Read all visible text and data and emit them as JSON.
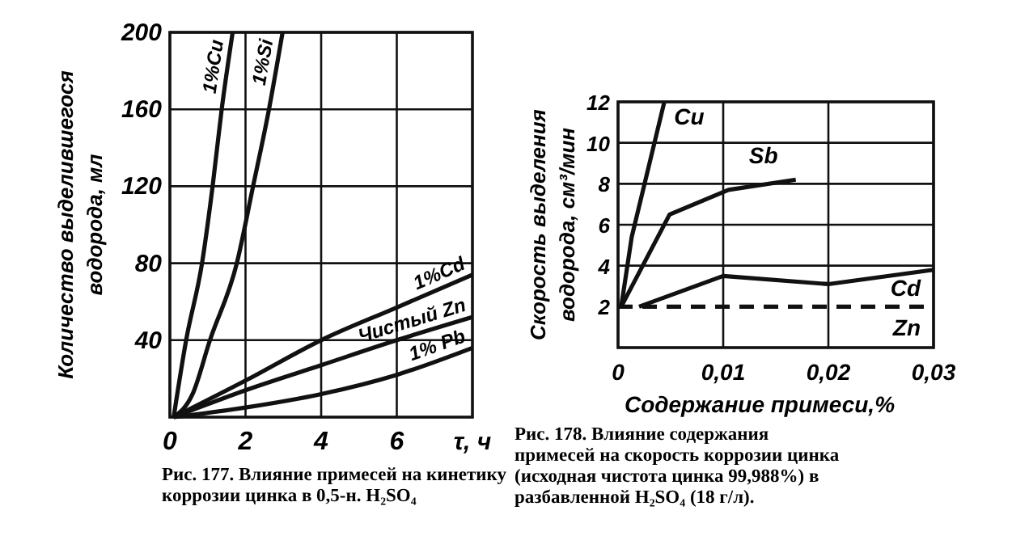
{
  "chart_data": [
    {
      "type": "line",
      "xlabel": "τ, ч",
      "ylabel": "Количество выделившегося водорода, мл",
      "xlim": [
        0,
        8
      ],
      "xticks": [
        0,
        2,
        4,
        6
      ],
      "ylim": [
        0,
        200
      ],
      "yticks": [
        40,
        80,
        120,
        160,
        200
      ],
      "grid": true,
      "series": [
        {
          "name": "1%Cu",
          "color": "#111111",
          "x": [
            0.1,
            0.43,
            0.85,
            1.13,
            1.37,
            1.66
          ],
          "values": [
            0,
            40,
            80,
            120,
            160,
            200
          ]
        },
        {
          "name": "1%Si",
          "color": "#111111",
          "x": [
            0.1,
            0.6,
            1.06,
            1.77,
            2.2,
            2.62,
            2.98
          ],
          "values": [
            0,
            12,
            40,
            80,
            120,
            160,
            200
          ]
        },
        {
          "name": "1%Cd",
          "color": "#111111",
          "x": [
            0.1,
            2,
            4,
            6,
            8
          ],
          "values": [
            0,
            19,
            40,
            57,
            74
          ]
        },
        {
          "name": "Чистый Zn",
          "color": "#111111",
          "x": [
            0.1,
            2,
            4,
            6,
            8
          ],
          "values": [
            0,
            14,
            27,
            40,
            52
          ]
        },
        {
          "name": "1% Pb",
          "color": "#111111",
          "x": [
            0.1,
            2,
            4,
            6,
            8
          ],
          "values": [
            0,
            5,
            12,
            22,
            36
          ]
        }
      ],
      "annotations": [
        "Рис. 177. Влияние примесей на кинетику коррозии цинка в 0,5-н. H₂SO₄"
      ]
    },
    {
      "type": "line",
      "xlabel": "Содержание примеси,%",
      "ylabel": "Скорость выделения водорода, см³/мин",
      "xlim": [
        0,
        0.03
      ],
      "xticks": [
        {
          "value": 0,
          "label": "0"
        },
        {
          "value": 0.01,
          "label": "0,01"
        },
        {
          "value": 0.02,
          "label": "0,02"
        },
        {
          "value": 0.03,
          "label": "0,03"
        }
      ],
      "ylim": [
        0,
        12
      ],
      "yticks": [
        2,
        4,
        6,
        8,
        10,
        12
      ],
      "grid": true,
      "series": [
        {
          "name": "Cu",
          "color": "#111111",
          "x": [
            0.0003,
            0.0013,
            0.0044
          ],
          "values": [
            2,
            5.4,
            12
          ]
        },
        {
          "name": "Sb",
          "color": "#111111",
          "x": [
            0.0003,
            0.0049,
            0.0105,
            0.0169
          ],
          "values": [
            2,
            6.5,
            7.7,
            8.2
          ]
        },
        {
          "name": "Cd",
          "color": "#111111",
          "x": [
            0.002,
            0.01,
            0.02,
            0.03
          ],
          "values": [
            2,
            3.5,
            3.1,
            3.8
          ]
        },
        {
          "name": "Zn",
          "color": "#111111",
          "line_style": "dashed",
          "x": [
            0,
            0.03
          ],
          "values": [
            2,
            2
          ]
        }
      ],
      "annotations": [
        "Рис. 178. Влияние содержания примесей на скорость коррозии цинка (исходная чистота цинка 99,988%) в разбавленной H₂SO₄ (18 г/л)."
      ]
    }
  ]
}
